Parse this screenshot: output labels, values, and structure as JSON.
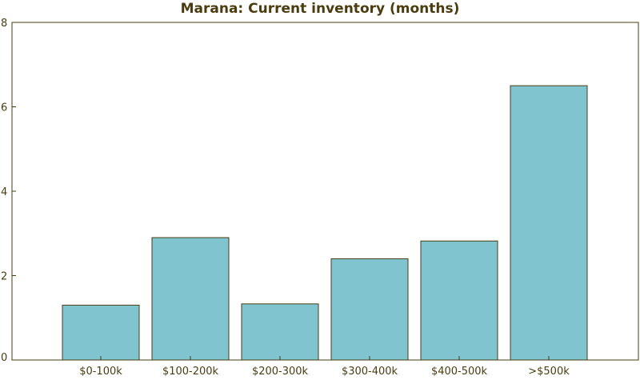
{
  "colors": {
    "bar_fill": "#7fc4cf",
    "bar_stroke": "#4a3c10",
    "axis": "#4a3c10",
    "text": "#4a3c10",
    "title": "#4a3c10"
  },
  "chart_data": {
    "type": "bar",
    "title": "Marana: Current inventory (months)",
    "xlabel": "",
    "ylabel": "",
    "categories": [
      "$0-100k",
      "$100-200k",
      "$200-300k",
      "$300-400k",
      "$400-500k",
      ">$500k"
    ],
    "values": [
      1.3,
      2.9,
      1.33,
      2.4,
      2.82,
      6.5
    ],
    "ylim": [
      0,
      8
    ],
    "yticks": [
      "0",
      "2",
      "4",
      "6",
      "8"
    ],
    "grid": false,
    "legend": "none"
  }
}
